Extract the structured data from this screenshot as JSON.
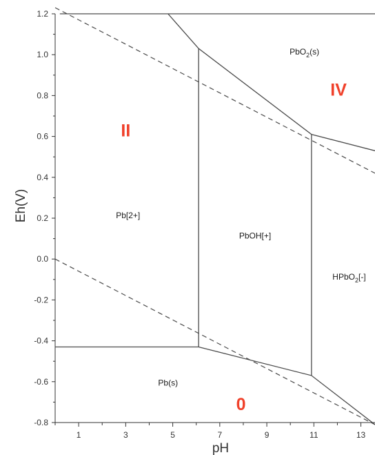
{
  "chart_data": {
    "type": "line",
    "title": "",
    "xlabel": "pH",
    "ylabel": "Eh(V)",
    "xlim": [
      0,
      13.6
    ],
    "ylim": [
      -0.8,
      1.2
    ],
    "x_ticks": [
      1,
      3,
      5,
      7,
      9,
      11,
      13
    ],
    "y_ticks": [
      "1.2",
      "1.0",
      "0.8",
      "0.6",
      "0.4",
      "0.2",
      "0.0",
      "-0.2",
      "-0.4",
      "-0.6",
      "-0.8"
    ],
    "grid": false,
    "colors": {
      "boundary": "#4a4a4a",
      "region_label": "#f0412b",
      "axis": "#333333",
      "text": "#1a1a1a"
    },
    "water_stability_lines": [
      {
        "id": "upper",
        "points": [
          [
            0,
            1.23
          ],
          [
            13.6,
            0.42
          ]
        ]
      },
      {
        "id": "lower",
        "points": [
          [
            0,
            0.0
          ],
          [
            13.6,
            -0.81
          ]
        ]
      }
    ],
    "phase_boundaries": [
      {
        "id": "top-frame",
        "points": [
          [
            0.2,
            1.2
          ],
          [
            13.6,
            1.2
          ]
        ]
      },
      {
        "id": "pb2-pbo2",
        "points": [
          [
            4.8,
            1.2
          ],
          [
            6.1,
            1.03
          ],
          [
            10.9,
            0.61
          ],
          [
            13.6,
            0.53
          ]
        ]
      },
      {
        "id": "pb2-pboh",
        "points": [
          [
            6.1,
            1.03
          ],
          [
            6.1,
            -0.43
          ]
        ]
      },
      {
        "id": "pboh-hpbo2",
        "points": [
          [
            10.9,
            0.61
          ],
          [
            10.9,
            -0.57
          ]
        ]
      },
      {
        "id": "pb-lower",
        "points": [
          [
            0,
            -0.43
          ],
          [
            6.1,
            -0.43
          ],
          [
            10.9,
            -0.57
          ],
          [
            13.6,
            -0.81
          ]
        ]
      }
    ],
    "species_labels": [
      {
        "main": "PbO",
        "sub": "2",
        "after": "(s)",
        "x": 10.6,
        "y": 1.0
      },
      {
        "main": "Pb[2+]",
        "sub": "",
        "after": "",
        "x": 3.1,
        "y": 0.2
      },
      {
        "main": "PbOH[+]",
        "sub": "",
        "after": "",
        "x": 8.5,
        "y": 0.1
      },
      {
        "main": "HPbO",
        "sub": "2",
        "after": "[-]",
        "x": 12.5,
        "y": -0.1
      },
      {
        "main": "Pb(s)",
        "sub": "",
        "after": "",
        "x": 4.8,
        "y": -0.62
      }
    ],
    "region_labels": [
      {
        "text": "IV",
        "x": 12.05,
        "y": 0.8
      },
      {
        "text": "II",
        "x": 3.0,
        "y": 0.6
      },
      {
        "text": "0",
        "x": 7.9,
        "y": -0.74
      }
    ]
  }
}
